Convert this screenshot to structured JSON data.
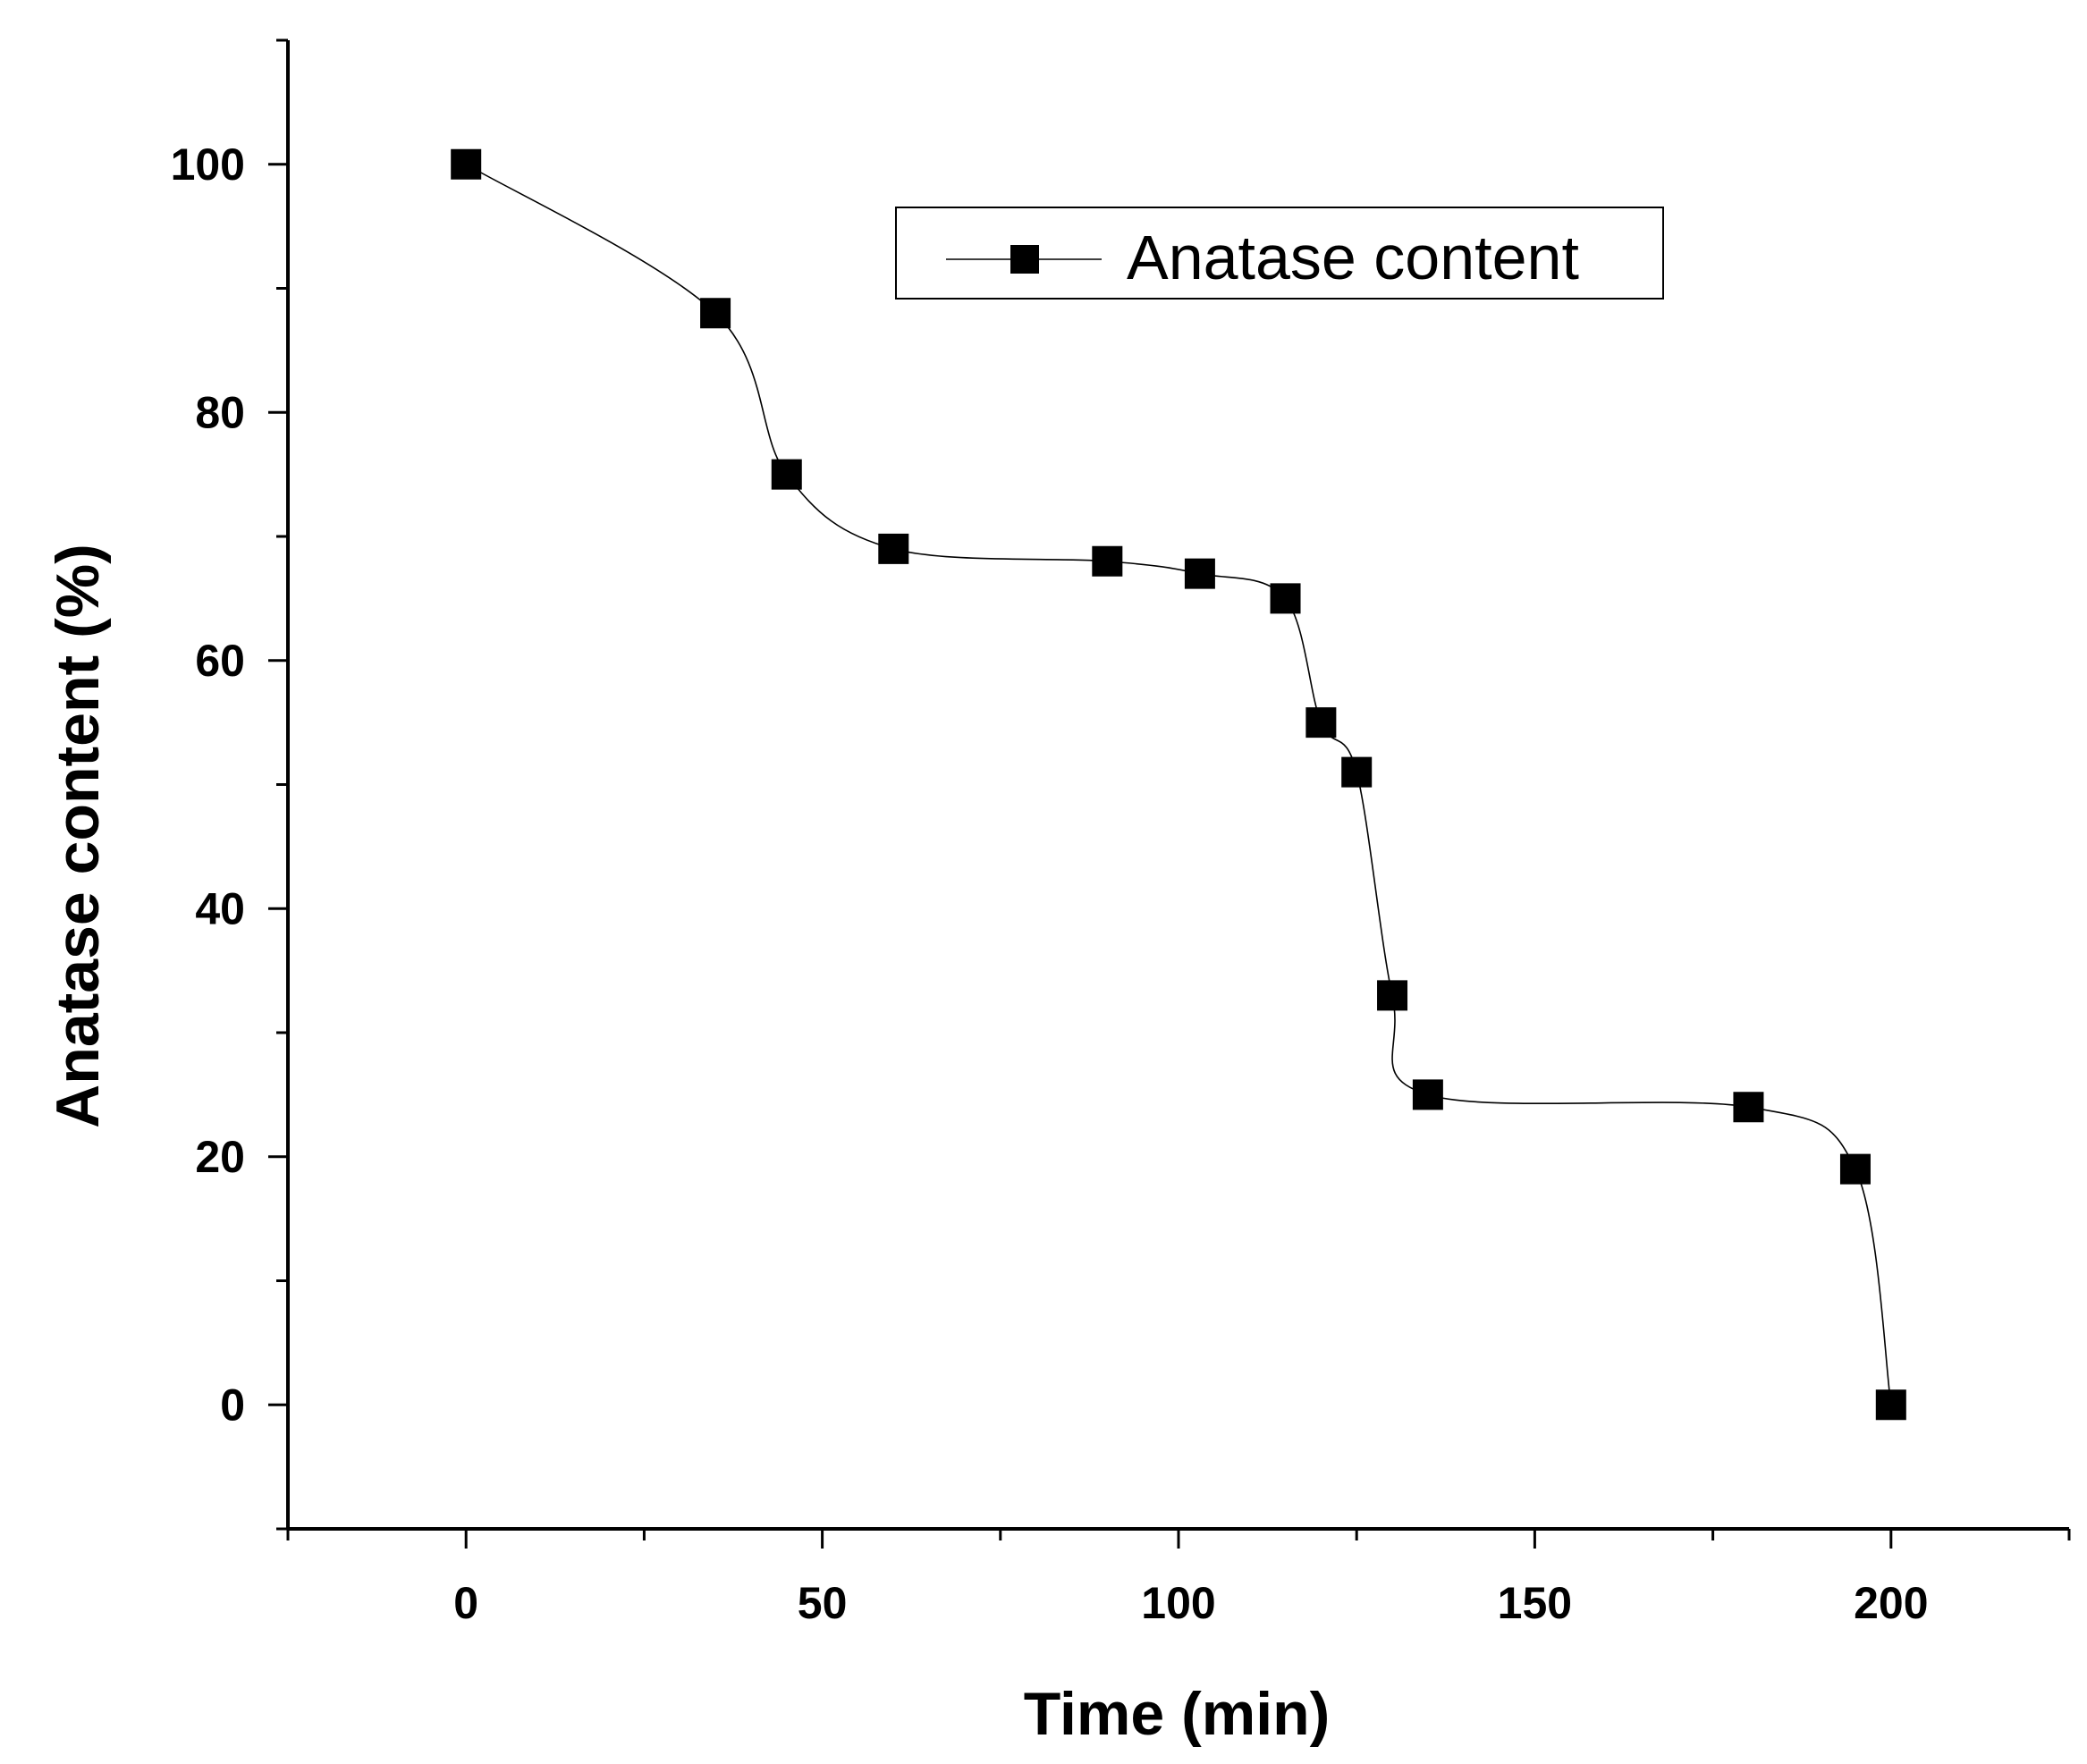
{
  "chart_data": {
    "type": "scatter",
    "title": "",
    "xlabel": "Time (min)",
    "ylabel": "Anatase content (%)",
    "xlim": [
      -25,
      225
    ],
    "ylim": [
      -10,
      110
    ],
    "x_ticks": [
      0,
      50,
      100,
      150,
      200
    ],
    "x_tick_labels": [
      "0",
      "50",
      "100",
      "150",
      "200"
    ],
    "x_minor_ticks": [
      -25,
      25,
      75,
      125,
      175,
      225
    ],
    "y_ticks": [
      0,
      20,
      40,
      60,
      80,
      100
    ],
    "y_tick_labels": [
      "0",
      "20",
      "40",
      "60",
      "80",
      "100"
    ],
    "y_minor_ticks": [
      -10,
      10,
      30,
      50,
      70,
      90,
      110
    ],
    "grid": false,
    "legend_position": "top-right",
    "series": [
      {
        "name": "Anatase content",
        "marker": "square",
        "line": "smooth",
        "color": "#000000",
        "x": [
          0,
          35,
          45,
          60,
          90,
          103,
          115,
          120,
          125,
          130,
          135,
          180,
          195,
          200
        ],
        "y": [
          100,
          88,
          75,
          69,
          68,
          67,
          65,
          55,
          51,
          33,
          25,
          24,
          19,
          0
        ]
      }
    ]
  }
}
